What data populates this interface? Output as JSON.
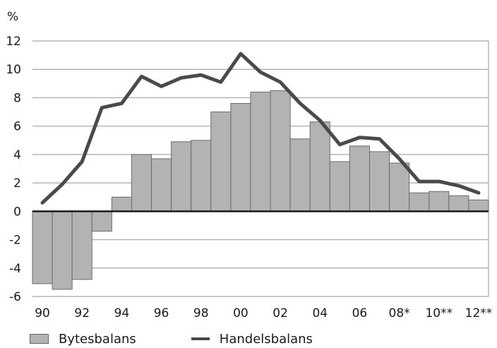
{
  "chart_data": {
    "type": "bar+line",
    "unit_label": "%",
    "categories": [
      "1990",
      "1991",
      "1992",
      "1993",
      "1994",
      "1995",
      "1996",
      "1997",
      "1998",
      "1999",
      "2000",
      "2001",
      "2002",
      "2003",
      "2004",
      "2005",
      "2006",
      "2007",
      "2008",
      "2009",
      "2010",
      "2011",
      "2012"
    ],
    "x_tick_labels": [
      "90",
      "92",
      "94",
      "96",
      "98",
      "00",
      "02",
      "04",
      "06",
      "08*",
      "10**",
      "12**"
    ],
    "y_ticks": [
      12,
      10,
      8,
      6,
      4,
      2,
      0,
      -2,
      -4,
      -6
    ],
    "ylim": [
      -6,
      12
    ],
    "grid": true,
    "legend_position": "bottom",
    "series": [
      {
        "name": "Bytesbalans",
        "type": "bar",
        "color": "#b3b3b3",
        "values": [
          -5.1,
          -5.5,
          -4.8,
          -1.4,
          1.0,
          4.0,
          3.7,
          4.9,
          5.0,
          7.0,
          7.6,
          8.4,
          8.5,
          5.1,
          6.3,
          3.5,
          4.6,
          4.2,
          3.4,
          1.3,
          1.4,
          1.1,
          0.8
        ]
      },
      {
        "name": "Handelsbalans",
        "type": "line",
        "color": "#4a4a4a",
        "values": [
          0.6,
          1.9,
          3.5,
          7.3,
          7.6,
          9.5,
          8.8,
          9.4,
          9.6,
          9.1,
          11.1,
          9.8,
          9.1,
          7.6,
          6.4,
          4.7,
          5.2,
          5.1,
          3.7,
          2.1,
          2.1,
          1.8,
          1.3
        ]
      }
    ]
  }
}
